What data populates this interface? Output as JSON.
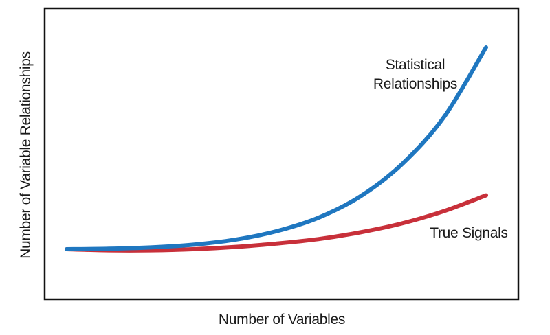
{
  "chart_data": {
    "type": "line",
    "title": "",
    "xlabel": "Number of Variables",
    "ylabel": "Number of Variable Relationships",
    "grid": false,
    "xlim": [
      0,
      10
    ],
    "ylim": [
      0,
      10
    ],
    "x": [
      0,
      1,
      2,
      3,
      4,
      5,
      6,
      7,
      8,
      9,
      10
    ],
    "series": [
      {
        "name": "Statistical Relationships",
        "color": "#1f77c0",
        "values": [
          0.0,
          0.02,
          0.08,
          0.2,
          0.42,
          0.8,
          1.4,
          2.35,
          3.8,
          5.9,
          9.0
        ]
      },
      {
        "name": "True Signals",
        "color": "#c8303a",
        "values": [
          0.0,
          -0.05,
          -0.05,
          0.0,
          0.1,
          0.25,
          0.45,
          0.75,
          1.15,
          1.7,
          2.4
        ]
      }
    ]
  }
}
